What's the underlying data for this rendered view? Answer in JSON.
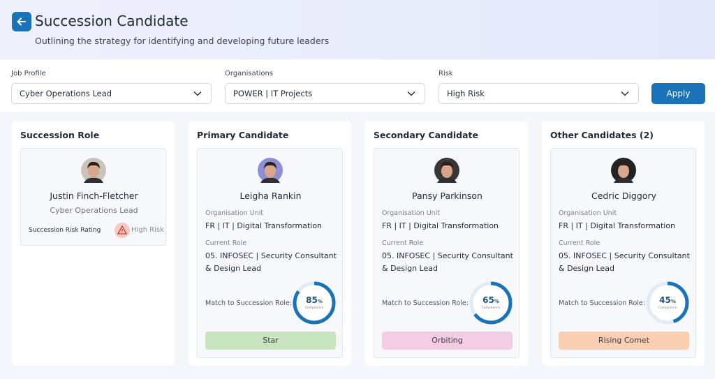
{
  "header": {
    "title": "Succession Candidate",
    "subtitle": "Outlining the strategy for identifying and developing future leaders"
  },
  "filters": [
    {
      "label": "Job Profile",
      "value": "Cyber Operations Lead"
    },
    {
      "label": "Organisations",
      "value": "POWER | IT Projects"
    },
    {
      "label": "Risk",
      "value": "High Risk"
    }
  ],
  "apply": "Apply",
  "succession_role": {
    "heading": "Succession Role",
    "name": "Justin Finch-Fletcher",
    "role": "Cyber Operations Lead",
    "risk_label": "Succession Risk Rating",
    "risk_value": "High Risk"
  },
  "candidates": [
    {
      "heading": "Primary Candidate",
      "name": "Leigha Rankin",
      "org_label": "Organisation Unit",
      "org_value": "FR | IT | Digital Transformation",
      "role_label": "Current Role",
      "role_value": "05. INFOSEC | Security Consultant & Design Lead",
      "match_label": "Match to Succession Role:",
      "match": 85,
      "match_unit": "%",
      "match_caption": "Compliance",
      "status": "Star"
    },
    {
      "heading": "Secondary Candidate",
      "name": "Pansy Parkinson",
      "org_label": "Organisation Unit",
      "org_value": "FR | IT | Digital Transformation",
      "role_label": "Current Role",
      "role_value": "05. INFOSEC | Security Consultant & Design Lead",
      "match_label": "Match to Succession Role:",
      "match": 65,
      "match_unit": "%",
      "match_caption": "Compliance",
      "status": "Orbiting"
    },
    {
      "heading": "Other Candidates (2)",
      "name": "Cedric Diggory",
      "org_label": "Organisation Unit",
      "org_value": "FR | IT | Digital Transformation",
      "role_label": "Current Role",
      "role_value": "05. INFOSEC | Security Consultant & Design Lead",
      "match_label": "Match to Succession Role:",
      "match": 45,
      "match_unit": "%",
      "match_caption": "Compliance",
      "status": "Rising Comet"
    }
  ]
}
